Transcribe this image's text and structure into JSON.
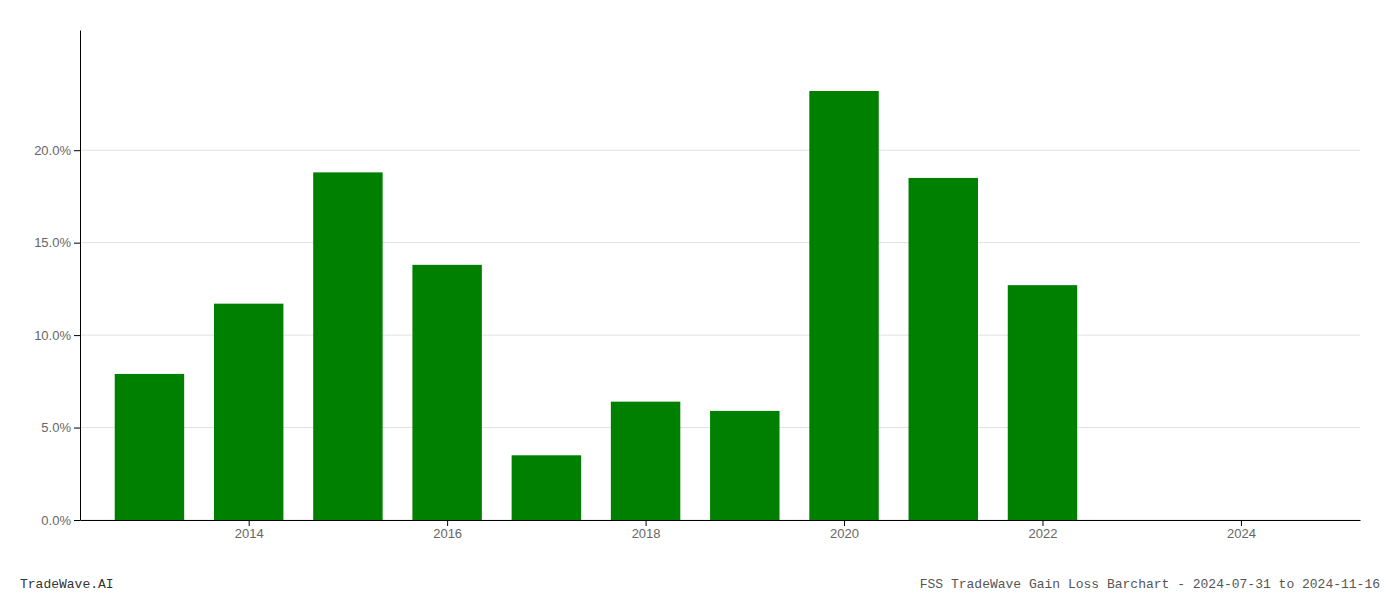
{
  "chart_data": {
    "type": "bar",
    "x": [
      2013,
      2014,
      2015,
      2016,
      2017,
      2018,
      2019,
      2020,
      2021,
      2022
    ],
    "values": [
      0.079,
      0.117,
      0.188,
      0.138,
      0.035,
      0.064,
      0.059,
      0.232,
      0.185,
      0.127
    ],
    "color": "#008000",
    "xlim": [
      2012.3,
      2025.2
    ],
    "xticks": [
      2014,
      2016,
      2018,
      2020,
      2022,
      2024
    ],
    "ylim": [
      0,
      0.265
    ],
    "yticks": [
      {
        "value": 0.0,
        "label": "0.0%"
      },
      {
        "value": 0.05,
        "label": "5.0%"
      },
      {
        "value": 0.1,
        "label": "10.0%"
      },
      {
        "value": 0.15,
        "label": "15.0%"
      },
      {
        "value": 0.2,
        "label": "20.0%"
      }
    ],
    "grid": true,
    "annotations": [
      "TradeWave.AI",
      "FSS TradeWave Gain Loss Barchart - 2024-07-31 to 2024-11-16"
    ]
  }
}
